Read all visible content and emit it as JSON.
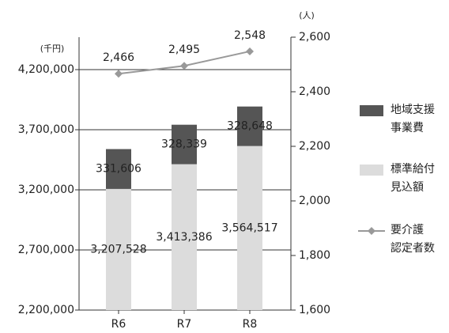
{
  "chart_data": {
    "type": "stacked-bar-line",
    "left_unit": "(千円)",
    "right_unit": "(人)",
    "categories": [
      "R6",
      "R7",
      "R8"
    ],
    "ylim": [
      2200000,
      4470000
    ],
    "yticks": [
      {
        "value": 2200000,
        "label": "2,200,000"
      },
      {
        "value": 2700000,
        "label": "2,700,000"
      },
      {
        "value": 3200000,
        "label": "3,200,000"
      },
      {
        "value": 3700000,
        "label": "3,700,000"
      },
      {
        "value": 4200000,
        "label": "4,200,000"
      }
    ],
    "y2lim": [
      1600,
      2600
    ],
    "y2ticks": [
      {
        "value": 1600,
        "label": "1,600"
      },
      {
        "value": 1800,
        "label": "1,800"
      },
      {
        "value": 2000,
        "label": "2,000"
      },
      {
        "value": 2200,
        "label": "2,200"
      },
      {
        "value": 2400,
        "label": "2,400"
      },
      {
        "value": 2600,
        "label": "2,600"
      }
    ],
    "grid": true,
    "series": [
      {
        "name": "標準給付\n見込額",
        "color": "#dcdcdc",
        "values": [
          3207528,
          3413386,
          3564517
        ],
        "value_labels": [
          "3,207,528",
          "3,413,386",
          "3,564,517"
        ]
      },
      {
        "name": "地域支援\n事業費",
        "color": "#555555",
        "values": [
          331606,
          328339,
          328648
        ],
        "value_labels": [
          "331,606",
          "328,339",
          "328,648"
        ]
      },
      {
        "name": "要介護\n認定者数",
        "color": "#999999",
        "axis": "y2",
        "values": [
          2466,
          2495,
          2548
        ],
        "value_labels": [
          "2,466",
          "2,495",
          "2,548"
        ]
      }
    ]
  }
}
